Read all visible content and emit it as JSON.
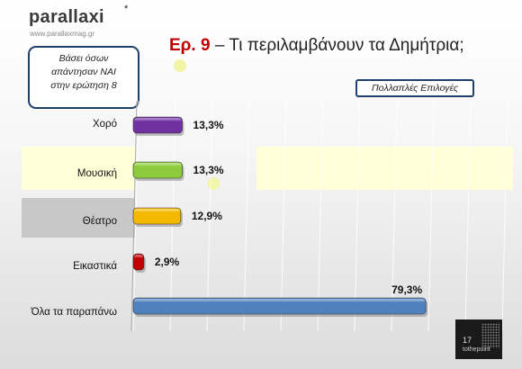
{
  "header": {
    "logo_text": "parallaxi",
    "logo_star": "*",
    "logo_url": "www.parallaxmag.gr",
    "title_prefix": "Ερ. 9",
    "title_text": " – Τι περιλαμβάνουν τα Δημήτρια;"
  },
  "note": {
    "lines": [
      "Βάσει όσων",
      "απάντησαν ΝΑΙ",
      "στην ερώτηση 8"
    ]
  },
  "badge": {
    "label": "Πολλαπλές Επιλογές"
  },
  "footer": {
    "page_number": "17",
    "brand": "tothepoint"
  },
  "colors": {
    "title_accent": "#c00000",
    "box_border": "#1f3f6e",
    "bar_colors": [
      "#7030a0",
      "#8ccb3c",
      "#f5b800",
      "#c00000",
      "#4f81bd"
    ]
  },
  "chart_data": {
    "type": "bar",
    "orientation": "horizontal",
    "categories": [
      "Χορό",
      "Μουσική",
      "Θέατρο",
      "Εικαστικά",
      "Όλα τα παραπάνω"
    ],
    "values": [
      13.3,
      13.3,
      12.9,
      2.9,
      79.3
    ],
    "value_labels": [
      "13,3%",
      "13,3%",
      "12,9%",
      "2,9%",
      "79,3%"
    ],
    "xlim": [
      0,
      100
    ],
    "grid": true
  }
}
